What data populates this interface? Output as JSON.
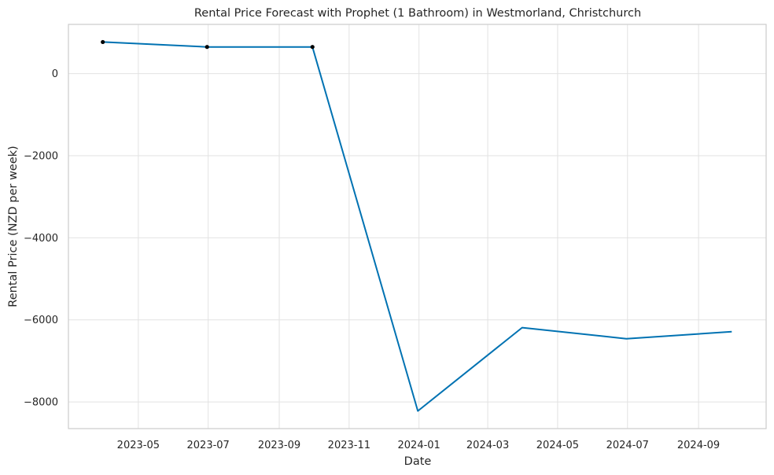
{
  "chart_data": {
    "type": "line",
    "title": "Rental Price Forecast with Prophet (1 Bathroom) in Westmorland, Christchurch",
    "xlabel": "Date",
    "ylabel": "Rental Price (NZD per week)",
    "xlim": [
      "2023-03-01",
      "2024-10-30"
    ],
    "ylim": [
      -8650,
      1200
    ],
    "grid": true,
    "x_ticks": [
      {
        "date": "2023-05-01",
        "label": "2023-05"
      },
      {
        "date": "2023-07-01",
        "label": "2023-07"
      },
      {
        "date": "2023-09-01",
        "label": "2023-09"
      },
      {
        "date": "2023-11-01",
        "label": "2023-11"
      },
      {
        "date": "2024-01-01",
        "label": "2024-01"
      },
      {
        "date": "2024-03-01",
        "label": "2024-03"
      },
      {
        "date": "2024-05-01",
        "label": "2024-05"
      },
      {
        "date": "2024-07-01",
        "label": "2024-07"
      },
      {
        "date": "2024-09-01",
        "label": "2024-09"
      }
    ],
    "y_ticks": [
      {
        "value": 0,
        "label": "0"
      },
      {
        "value": -2000,
        "label": "−2000"
      },
      {
        "value": -4000,
        "label": "−4000"
      },
      {
        "value": -6000,
        "label": "−6000"
      },
      {
        "value": -8000,
        "label": "−8000"
      }
    ],
    "series": [
      {
        "kind": "forecast",
        "color": "#0072b2",
        "x": [
          "2023-03-31",
          "2023-06-30",
          "2023-09-30",
          "2023-12-31",
          "2024-03-31",
          "2024-06-30",
          "2024-09-30"
        ],
        "y": [
          770,
          650,
          650,
          -8220,
          -6190,
          -6460,
          -6290
        ]
      },
      {
        "kind": "observed",
        "color": "#000000",
        "x": [
          "2023-03-31",
          "2023-06-30",
          "2023-09-30"
        ],
        "y": [
          770,
          650,
          650
        ]
      }
    ]
  }
}
